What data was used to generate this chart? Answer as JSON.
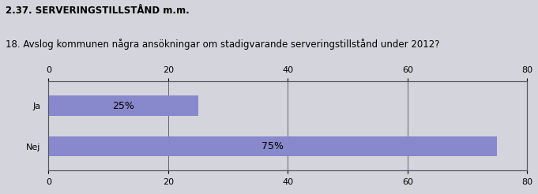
{
  "title1": "2.37. SERVERINGSTILLSTÅND m.m.",
  "title2": "18. Avslog kommunen några ansökningar om stadigvarande serveringstillstånd under 2012?",
  "categories": [
    "Ja",
    "Nej"
  ],
  "values": [
    25,
    75
  ],
  "labels": [
    "25%",
    "75%"
  ],
  "xlim": [
    0,
    80
  ],
  "xticks": [
    0,
    20,
    40,
    60,
    80
  ],
  "bar_color": "#8888CC",
  "outer_bg_color": "#D4D4DC",
  "plot_bg_color": "#D4D4DC",
  "text_color": "#000000",
  "title1_fontsize": 8.5,
  "title2_fontsize": 8.5,
  "tick_fontsize": 8,
  "label_fontsize": 9,
  "bar_height": 0.5
}
